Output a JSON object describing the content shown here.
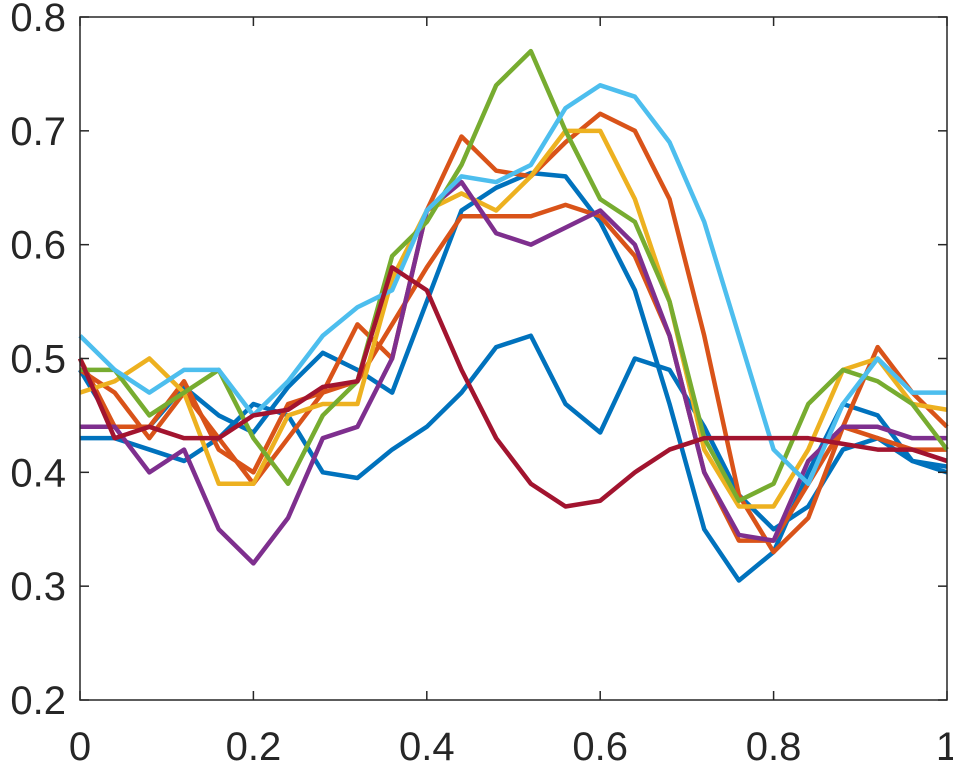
{
  "chart_data": {
    "type": "line",
    "x": [
      0,
      0.04,
      0.08,
      0.12,
      0.16,
      0.2,
      0.24,
      0.28,
      0.32,
      0.36,
      0.4,
      0.44,
      0.48,
      0.52,
      0.56,
      0.6,
      0.64,
      0.68,
      0.72,
      0.76,
      0.8,
      0.84,
      0.88,
      0.92,
      0.96,
      1
    ],
    "xlim": [
      0,
      1
    ],
    "xticks": [
      0,
      0.2,
      0.4,
      0.6,
      0.8,
      1
    ],
    "ylim": [
      0.2,
      0.8
    ],
    "yticks": [
      0.2,
      0.3,
      0.4,
      0.5,
      0.6,
      0.7,
      0.8
    ],
    "series": [
      {
        "color": "#0072BD",
        "values": [
          0.49,
          0.44,
          0.44,
          0.475,
          0.45,
          0.435,
          0.475,
          0.505,
          0.49,
          0.47,
          0.55,
          0.63,
          0.65,
          0.663,
          0.66,
          0.62,
          0.56,
          0.46,
          0.35,
          0.305,
          0.33,
          0.4,
          0.46,
          0.45,
          0.41,
          0.405
        ]
      },
      {
        "color": "#0072BD",
        "values": [
          0.43,
          0.43,
          0.42,
          0.41,
          0.43,
          0.46,
          0.45,
          0.4,
          0.395,
          0.42,
          0.44,
          0.47,
          0.51,
          0.52,
          0.46,
          0.435,
          0.5,
          0.49,
          0.44,
          0.38,
          0.35,
          0.37,
          0.42,
          0.43,
          0.41,
          0.4
        ]
      },
      {
        "color": "#D95319",
        "values": [
          0.49,
          0.47,
          0.43,
          0.47,
          0.43,
          0.39,
          0.43,
          0.47,
          0.53,
          0.5,
          0.63,
          0.695,
          0.665,
          0.66,
          0.69,
          0.715,
          0.7,
          0.64,
          0.52,
          0.38,
          0.33,
          0.36,
          0.44,
          0.51,
          0.47,
          0.44
        ]
      },
      {
        "color": "#D95319",
        "values": [
          0.5,
          0.44,
          0.44,
          0.48,
          0.42,
          0.4,
          0.46,
          0.47,
          0.48,
          0.53,
          0.58,
          0.625,
          0.625,
          0.625,
          0.635,
          0.625,
          0.59,
          0.52,
          0.4,
          0.34,
          0.34,
          0.39,
          0.44,
          0.43,
          0.42,
          0.42
        ]
      },
      {
        "color": "#EDB120",
        "values": [
          0.47,
          0.48,
          0.5,
          0.47,
          0.39,
          0.39,
          0.45,
          0.46,
          0.46,
          0.57,
          0.63,
          0.645,
          0.63,
          0.66,
          0.7,
          0.7,
          0.64,
          0.55,
          0.42,
          0.37,
          0.37,
          0.42,
          0.49,
          0.5,
          0.46,
          0.455
        ]
      },
      {
        "color": "#7E2F8E",
        "values": [
          0.44,
          0.44,
          0.4,
          0.42,
          0.35,
          0.32,
          0.36,
          0.43,
          0.44,
          0.5,
          0.63,
          0.655,
          0.61,
          0.6,
          0.615,
          0.63,
          0.6,
          0.52,
          0.4,
          0.345,
          0.34,
          0.41,
          0.44,
          0.44,
          0.43,
          0.43
        ]
      },
      {
        "color": "#77AC30",
        "values": [
          0.49,
          0.49,
          0.45,
          0.47,
          0.49,
          0.43,
          0.39,
          0.45,
          0.48,
          0.59,
          0.62,
          0.67,
          0.74,
          0.77,
          0.7,
          0.64,
          0.62,
          0.55,
          0.43,
          0.375,
          0.39,
          0.46,
          0.49,
          0.48,
          0.46,
          0.42
        ]
      },
      {
        "color": "#4DBEEE",
        "values": [
          0.52,
          0.49,
          0.47,
          0.49,
          0.49,
          0.45,
          0.48,
          0.52,
          0.545,
          0.56,
          0.63,
          0.66,
          0.655,
          0.67,
          0.72,
          0.74,
          0.73,
          0.69,
          0.62,
          0.52,
          0.42,
          0.39,
          0.46,
          0.5,
          0.47,
          0.47
        ]
      },
      {
        "color": "#A2142F",
        "values": [
          0.5,
          0.43,
          0.44,
          0.43,
          0.43,
          0.45,
          0.455,
          0.475,
          0.48,
          0.58,
          0.56,
          0.49,
          0.43,
          0.39,
          0.37,
          0.375,
          0.4,
          0.42,
          0.43,
          0.43,
          0.43,
          0.43,
          0.425,
          0.42,
          0.42,
          0.41
        ]
      }
    ]
  }
}
